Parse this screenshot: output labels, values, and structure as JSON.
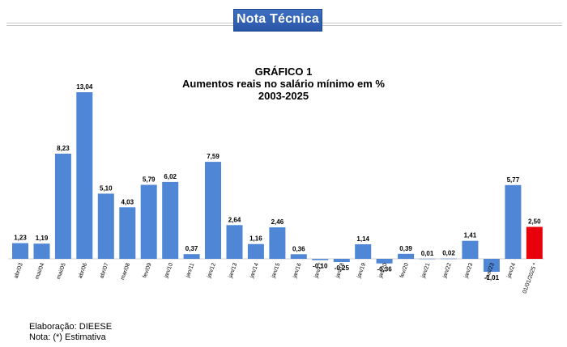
{
  "header": {
    "banner_text": "Nota Técnica",
    "banner_color": "#2e5cb0"
  },
  "chart_data": {
    "type": "bar",
    "title_line1": "GRÁFICO 1",
    "title_line2": "Aumentos reais no salário mínimo em %",
    "title_line3": "2003-2025",
    "xlabel": "",
    "ylabel": "",
    "ylim": [
      -2,
      14
    ],
    "grid": false,
    "legend": "none",
    "categories": [
      "abr/03",
      "mai/04",
      "mai/05",
      "abr/06",
      "abr/07",
      "mar/08",
      "fev/09",
      "jan/10",
      "jan/11",
      "jan/12",
      "jan/13",
      "jan/14",
      "jan/15",
      "jan/16",
      "jan/17",
      "jan/18",
      "jan/19",
      "jan/20",
      "fev/20",
      "jan/21",
      "jan/22",
      "jan/23",
      "mai/23",
      "jan/24",
      "01/01/2025 *"
    ],
    "values": [
      1.23,
      1.19,
      8.23,
      13.04,
      5.1,
      4.03,
      5.79,
      6.02,
      0.37,
      7.59,
      2.64,
      1.16,
      2.46,
      0.36,
      -0.1,
      -0.25,
      1.14,
      -0.36,
      0.39,
      0.01,
      0.02,
      1.41,
      -1.01,
      5.77,
      2.5
    ],
    "value_labels": [
      "1,23",
      "1,19",
      "8,23",
      "13,04",
      "5,10",
      "4,03",
      "5,79",
      "6,02",
      "0,37",
      "7,59",
      "2,64",
      "1,16",
      "2,46",
      "0,36",
      "-0,10",
      "-0,25",
      "1,14",
      "-0,36",
      "0,39",
      "0,01",
      "0,02",
      "1,41",
      "-1,01",
      "5,77",
      "2,50"
    ],
    "bar_color": "#4f86d6",
    "highlight_color": "#e8000c",
    "highlight_index": 24
  },
  "footer": {
    "source": "Elaboração: DIEESE",
    "note": "Nota: (*) Estimativa"
  }
}
